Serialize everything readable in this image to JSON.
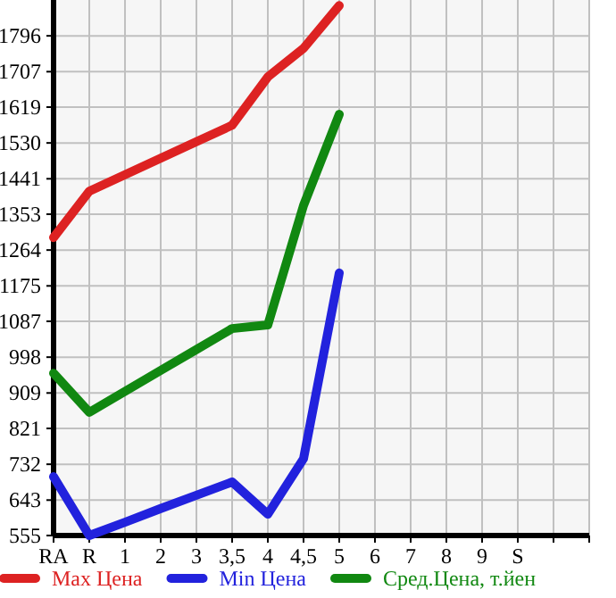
{
  "chart_data": {
    "type": "line",
    "categories": [
      "RA",
      "R",
      "1",
      "2",
      "3",
      "3,5",
      "4",
      "4,5",
      "5",
      "6",
      "7",
      "8",
      "9",
      "S",
      null,
      null
    ],
    "series": [
      {
        "name": "Max Цена",
        "color": "#dd2222",
        "values": [
          1295,
          1410,
          1451,
          1492,
          1533,
          1574,
          1694,
          1765,
          1871,
          null,
          null,
          null,
          null,
          null,
          null,
          null
        ]
      },
      {
        "name": "Min Цена",
        "color": "#2222dd",
        "values": [
          701,
          555,
          588,
          622,
          655,
          688,
          608,
          746,
          1207,
          null,
          null,
          null,
          null,
          null,
          null,
          null
        ]
      },
      {
        "name": "Сред.Цена, т.йен",
        "color": "#118811",
        "values": [
          958,
          861,
          913,
          965,
          1017,
          1069,
          1078,
          1375,
          1601,
          null,
          null,
          null,
          null,
          null,
          null,
          null
        ]
      }
    ],
    "ylim": [
      555,
      1885
    ],
    "yticks": [
      555,
      643,
      732,
      821,
      909,
      998,
      1087,
      1175,
      1264,
      1353,
      1441,
      1530,
      1619,
      1707,
      1796
    ],
    "grid": true,
    "legend": "bottom",
    "line_style": "solid",
    "marker": "none"
  }
}
